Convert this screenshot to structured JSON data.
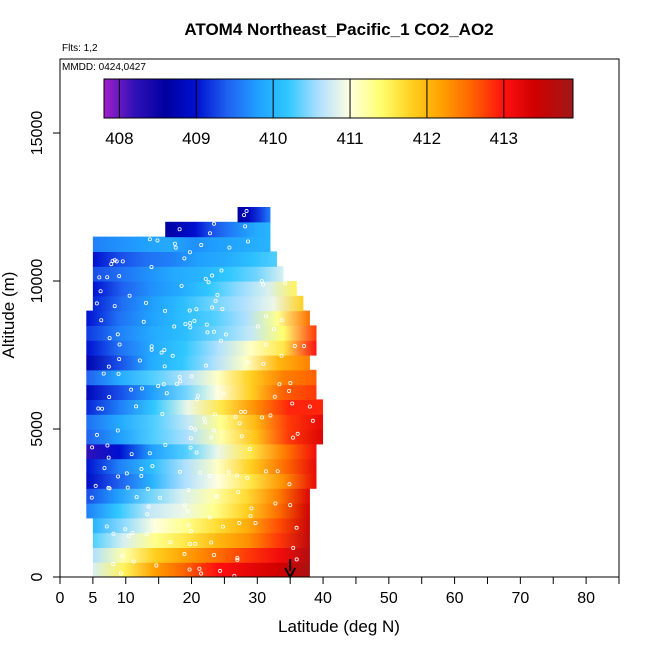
{
  "chart_data": {
    "type": "heatmap",
    "title": "ATOM4 Northeast_Pacific_1 CO2_AO2",
    "flights_note": "Flts: 1,2",
    "date_note": "MMDD: 0424,0427",
    "xlabel": "Latitude (deg N)",
    "ylabel": "Altitude (m)",
    "xlim": [
      0,
      85
    ],
    "ylim": [
      0,
      17500
    ],
    "x_ticks": [
      0,
      5,
      10,
      20,
      30,
      40,
      50,
      60,
      70,
      80
    ],
    "x_minor_ticks": [
      15,
      25,
      35,
      45,
      55,
      65,
      75,
      85
    ],
    "y_ticks": [
      0,
      5000,
      10000,
      15000
    ],
    "colorbar": {
      "min": 407.8,
      "max": 413.9,
      "ticks": [
        408,
        409,
        410,
        411,
        412,
        413
      ]
    },
    "colormap": [
      [
        407.8,
        "#a020c8"
      ],
      [
        408.2,
        "#3010b8"
      ],
      [
        408.6,
        "#0000a0"
      ],
      [
        409.0,
        "#0010d0"
      ],
      [
        409.4,
        "#2060f0"
      ],
      [
        409.8,
        "#20a0ff"
      ],
      [
        410.2,
        "#30c8ff"
      ],
      [
        410.6,
        "#b0e0ff"
      ],
      [
        411.0,
        "#ffffe0"
      ],
      [
        411.4,
        "#ffff70"
      ],
      [
        411.8,
        "#ffd020"
      ],
      [
        412.2,
        "#ffa000"
      ],
      [
        412.6,
        "#ff6000"
      ],
      [
        413.0,
        "#ff1010"
      ],
      [
        413.4,
        "#d00000"
      ],
      [
        413.9,
        "#a01818"
      ]
    ],
    "layers": [
      {
        "alt_bottom": 0,
        "alt_top": 500,
        "lat_start": 5,
        "lat_end": 38,
        "values": [
          410.8,
          411.5,
          412.2,
          412.6,
          413.0,
          413.2,
          413.4,
          413.8
        ]
      },
      {
        "alt_bottom": 500,
        "alt_top": 1000,
        "lat_start": 5,
        "lat_end": 38,
        "values": [
          410.6,
          411.2,
          411.8,
          412.2,
          412.5,
          412.8,
          413.1,
          413.7
        ]
      },
      {
        "alt_bottom": 1000,
        "alt_top": 1500,
        "lat_start": 5,
        "lat_end": 38,
        "values": [
          410.3,
          410.8,
          411.3,
          411.6,
          412.0,
          412.3,
          412.8,
          413.6
        ]
      },
      {
        "alt_bottom": 1500,
        "alt_top": 2000,
        "lat_start": 5,
        "lat_end": 38,
        "values": [
          410.0,
          410.5,
          411.0,
          411.3,
          411.7,
          412.1,
          412.7,
          413.5
        ]
      },
      {
        "alt_bottom": 2000,
        "alt_top": 2500,
        "lat_start": 4,
        "lat_end": 38,
        "values": [
          409.6,
          410.2,
          410.7,
          410.9,
          411.3,
          411.8,
          412.5,
          413.4
        ]
      },
      {
        "alt_bottom": 2500,
        "alt_top": 3000,
        "lat_start": 4,
        "lat_end": 38,
        "values": [
          409.3,
          409.8,
          410.4,
          410.8,
          411.2,
          411.7,
          412.4,
          413.3
        ]
      },
      {
        "alt_bottom": 3000,
        "alt_top": 3500,
        "lat_start": 4,
        "lat_end": 39,
        "values": [
          408.9,
          409.4,
          410.0,
          410.6,
          411.0,
          411.6,
          412.3,
          413.2
        ]
      },
      {
        "alt_bottom": 3500,
        "alt_top": 4000,
        "lat_start": 4,
        "lat_end": 39,
        "values": [
          409.0,
          409.6,
          410.1,
          410.6,
          411.1,
          411.8,
          412.5,
          413.2
        ]
      },
      {
        "alt_bottom": 4000,
        "alt_top": 4500,
        "lat_start": 4,
        "lat_end": 39,
        "values": [
          408.2,
          409.0,
          409.8,
          410.3,
          410.9,
          411.6,
          412.4,
          413.1
        ]
      },
      {
        "alt_bottom": 4500,
        "alt_top": 5000,
        "lat_start": 4,
        "lat_end": 40,
        "values": [
          409.4,
          409.8,
          410.3,
          410.6,
          411.2,
          411.9,
          412.8,
          413.3
        ]
      },
      {
        "alt_bottom": 5000,
        "alt_top": 5500,
        "lat_start": 4,
        "lat_end": 40,
        "values": [
          409.5,
          409.9,
          410.3,
          410.7,
          411.3,
          412.0,
          412.8,
          413.2
        ]
      },
      {
        "alt_bottom": 5500,
        "alt_top": 6000,
        "lat_start": 4,
        "lat_end": 40,
        "values": [
          409.1,
          409.6,
          410.2,
          410.9,
          411.6,
          412.3,
          412.9,
          412.9
        ]
      },
      {
        "alt_bottom": 6000,
        "alt_top": 6500,
        "lat_start": 4,
        "lat_end": 39,
        "values": [
          408.8,
          409.3,
          409.8,
          410.4,
          411.0,
          411.8,
          412.6,
          412.8
        ]
      },
      {
        "alt_bottom": 6500,
        "alt_top": 7000,
        "lat_start": 4,
        "lat_end": 39,
        "values": [
          409.4,
          409.9,
          410.3,
          410.6,
          411.1,
          411.8,
          412.4,
          412.6
        ]
      },
      {
        "alt_bottom": 7000,
        "alt_top": 7500,
        "lat_start": 4,
        "lat_end": 38,
        "values": [
          408.7,
          409.3,
          409.9,
          410.2,
          410.6,
          411.1,
          412.0,
          412.4
        ]
      },
      {
        "alt_bottom": 7500,
        "alt_top": 8000,
        "lat_start": 4,
        "lat_end": 39,
        "values": [
          409.0,
          409.5,
          409.9,
          410.2,
          410.6,
          411.1,
          411.6,
          413.0
        ]
      },
      {
        "alt_bottom": 8000,
        "alt_top": 8500,
        "lat_start": 4,
        "lat_end": 39,
        "values": [
          409.2,
          409.6,
          409.9,
          410.1,
          410.4,
          410.7,
          411.4,
          412.8
        ]
      },
      {
        "alt_bottom": 8500,
        "alt_top": 9000,
        "lat_start": 4,
        "lat_end": 38,
        "values": [
          409.0,
          409.5,
          409.8,
          410.1,
          410.3,
          410.6,
          411.3,
          412.5
        ]
      },
      {
        "alt_bottom": 9000,
        "alt_top": 9500,
        "lat_start": 5,
        "lat_end": 37,
        "values": [
          409.1,
          409.5,
          409.8,
          410.1,
          410.4,
          410.6,
          410.9,
          411.8
        ]
      },
      {
        "alt_bottom": 9500,
        "alt_top": 10000,
        "lat_start": 5,
        "lat_end": 36,
        "values": [
          409.0,
          409.4,
          409.7,
          409.9,
          410.2,
          410.5,
          410.8,
          411.5
        ]
      },
      {
        "alt_bottom": 10000,
        "alt_top": 10500,
        "lat_start": 5,
        "lat_end": 34,
        "values": [
          409.3,
          409.5,
          409.7,
          409.9,
          410.0,
          410.2,
          410.4,
          410.8
        ]
      },
      {
        "alt_bottom": 10500,
        "alt_top": 11000,
        "lat_start": 5,
        "lat_end": 33,
        "values": [
          409.0,
          409.3,
          409.5,
          409.6,
          409.8,
          409.9,
          410.1,
          410.3
        ]
      },
      {
        "alt_bottom": 11000,
        "alt_top": 11500,
        "lat_start": 5,
        "lat_end": 32,
        "values": [
          409.6,
          409.7,
          409.8,
          409.9,
          409.7,
          409.8,
          409.9,
          410.0
        ]
      },
      {
        "alt_bottom": 11500,
        "alt_top": 12000,
        "lat_start": 16,
        "lat_end": 32,
        "values": [
          408.6,
          408.8,
          409.0,
          409.3,
          409.5,
          409.7,
          409.9,
          410.0
        ]
      },
      {
        "alt_bottom": 12000,
        "alt_top": 12500,
        "lat_start": 27,
        "lat_end": 32,
        "values": [
          408.6,
          408.8,
          409.2,
          409.6
        ]
      }
    ],
    "surface_marker": {
      "lat": 35,
      "alt_top": 600,
      "alt_bottom": 0,
      "color": "#000000"
    }
  }
}
